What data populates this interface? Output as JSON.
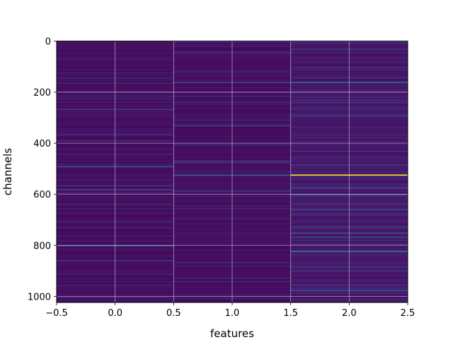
{
  "chart_data": {
    "type": "heatmap",
    "title": "",
    "xlabel": "features",
    "ylabel": "channels",
    "xlim": [
      -0.5,
      2.5
    ],
    "ylim": [
      1024,
      0
    ],
    "x_ticks": [
      -0.5,
      0.0,
      0.5,
      1.0,
      1.5,
      2.0,
      2.5
    ],
    "x_tick_labels": [
      "−0.5",
      "0.0",
      "0.5",
      "1.0",
      "1.5",
      "2.0",
      "2.5"
    ],
    "y_ticks": [
      0,
      200,
      400,
      600,
      800,
      1000
    ],
    "y_tick_labels": [
      "0",
      "200",
      "400",
      "600",
      "800",
      "1000"
    ],
    "grid": true,
    "colormap": "viridis",
    "columns": [
      0,
      1,
      2
    ],
    "num_channels": 1024,
    "highlights": [
      {
        "column": 2,
        "channel": 523,
        "value": 1.0
      },
      {
        "column": 2,
        "channel": 822,
        "value": 0.55
      },
      {
        "column": 1,
        "channel": 523,
        "value": 0.4
      },
      {
        "column": 0,
        "channel": 490,
        "value": 0.35
      },
      {
        "column": 0,
        "channel": 800,
        "value": 0.4
      },
      {
        "column": 2,
        "channel": 160,
        "value": 0.4
      },
      {
        "column": 2,
        "channel": 600,
        "value": 0.35
      },
      {
        "column": 2,
        "channel": 750,
        "value": 0.35
      },
      {
        "column": 2,
        "channel": 975,
        "value": 0.35
      },
      {
        "column": 1,
        "channel": 160,
        "value": 0.3
      },
      {
        "column": 0,
        "channel": 580,
        "value": 0.3
      }
    ]
  }
}
